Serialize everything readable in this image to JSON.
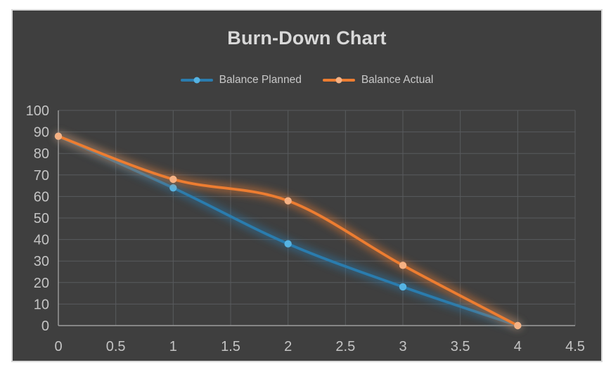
{
  "page": {
    "background": "#FFFFFF"
  },
  "chart": {
    "frame": {
      "background": "#3F3F3F",
      "border_color": "#D9D9D9"
    }
  },
  "chart_data": {
    "type": "line",
    "title": "Burn-Down Chart",
    "x": [
      0,
      1,
      2,
      3,
      4
    ],
    "series": [
      {
        "name": "Balance Planned",
        "values": [
          88,
          64,
          38,
          18,
          0
        ],
        "color": "#2A7CAE",
        "marker_color": "#55B3E3"
      },
      {
        "name": "Balance Actual",
        "values": [
          88,
          68,
          58,
          28,
          0
        ],
        "color": "#ED7D31",
        "marker_color": "#F5B183"
      }
    ],
    "xlim": [
      0,
      4.5
    ],
    "ylim": [
      0,
      100
    ],
    "x_ticks": [
      "0",
      "0.5",
      "1",
      "1.5",
      "2",
      "2.5",
      "3",
      "3.5",
      "4",
      "4.5"
    ],
    "y_ticks": [
      "0",
      "10",
      "20",
      "30",
      "40",
      "50",
      "60",
      "70",
      "80",
      "90",
      "100"
    ],
    "grid": true,
    "smooth_lines": true,
    "legend_position": "top",
    "colors": {
      "grid": "#595B5E",
      "axis": "#9E9E9E",
      "tick_text": "#C4C4C4",
      "title_text": "#D9D9D9",
      "legend_text": "#C9C9C9"
    }
  }
}
